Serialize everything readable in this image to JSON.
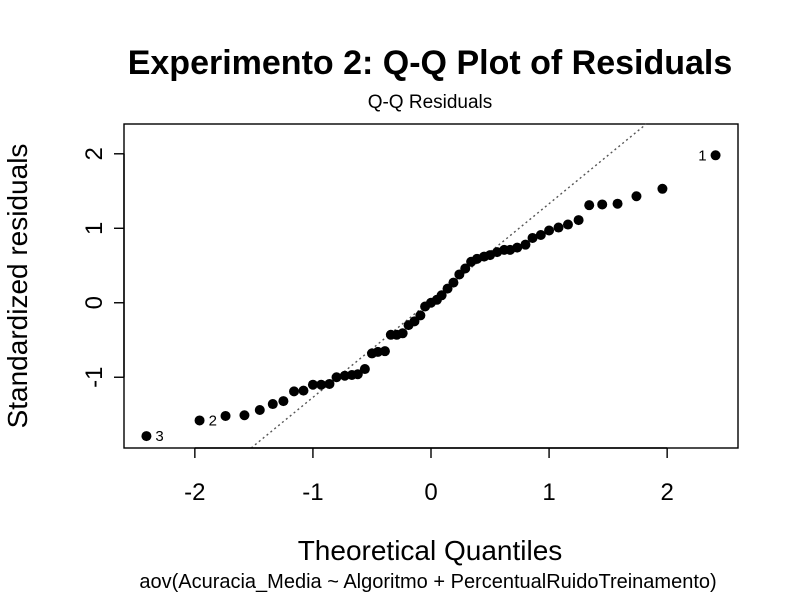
{
  "chart_data": {
    "type": "scatter",
    "title": "Experimento 2: Q-Q Plot of Residuals",
    "subtitle": "Q-Q Residuals",
    "xlabel": "Theoretical Quantiles",
    "ylabel": "Standardized residuals",
    "caption": "aov(Acuracia_Media ~ Algoritmo + PercentualRuidoTreinamento)",
    "xlim": [
      -2.6,
      2.6
    ],
    "ylim": [
      -1.95,
      2.4
    ],
    "x_ticks": [
      -2,
      -1,
      0,
      1,
      2
    ],
    "y_ticks": [
      -1,
      0,
      1,
      2
    ],
    "x_tick_labels": [
      "-2",
      "-1",
      "0",
      "1",
      "2"
    ],
    "y_tick_labels": [
      "-1",
      "0",
      "1",
      "2"
    ],
    "reference_line": {
      "style": "dotted",
      "color": "#555555",
      "intercept": 0.03,
      "slope": 1.3
    },
    "grid": false,
    "legend": "none",
    "point_color": "#000000",
    "points": [
      {
        "x": -2.41,
        "y": -1.79,
        "label": "3"
      },
      {
        "x": -1.96,
        "y": -1.58,
        "label": "2"
      },
      {
        "x": -1.74,
        "y": -1.52
      },
      {
        "x": -1.58,
        "y": -1.51
      },
      {
        "x": -1.45,
        "y": -1.44
      },
      {
        "x": -1.34,
        "y": -1.36
      },
      {
        "x": -1.25,
        "y": -1.32
      },
      {
        "x": -1.16,
        "y": -1.19
      },
      {
        "x": -1.08,
        "y": -1.18
      },
      {
        "x": -1.0,
        "y": -1.1
      },
      {
        "x": -0.93,
        "y": -1.1
      },
      {
        "x": -0.86,
        "y": -1.09
      },
      {
        "x": -0.8,
        "y": -1.0
      },
      {
        "x": -0.73,
        "y": -0.98
      },
      {
        "x": -0.67,
        "y": -0.97
      },
      {
        "x": -0.62,
        "y": -0.96
      },
      {
        "x": -0.56,
        "y": -0.89
      },
      {
        "x": -0.5,
        "y": -0.68
      },
      {
        "x": -0.45,
        "y": -0.66
      },
      {
        "x": -0.39,
        "y": -0.65
      },
      {
        "x": -0.34,
        "y": -0.43
      },
      {
        "x": -0.29,
        "y": -0.43
      },
      {
        "x": -0.24,
        "y": -0.41
      },
      {
        "x": -0.19,
        "y": -0.3
      },
      {
        "x": -0.14,
        "y": -0.25
      },
      {
        "x": -0.09,
        "y": -0.17
      },
      {
        "x": -0.05,
        "y": -0.05
      },
      {
        "x": 0.0,
        "y": 0.0
      },
      {
        "x": 0.05,
        "y": 0.04
      },
      {
        "x": 0.09,
        "y": 0.1
      },
      {
        "x": 0.14,
        "y": 0.19
      },
      {
        "x": 0.19,
        "y": 0.27
      },
      {
        "x": 0.24,
        "y": 0.38
      },
      {
        "x": 0.29,
        "y": 0.46
      },
      {
        "x": 0.34,
        "y": 0.55
      },
      {
        "x": 0.39,
        "y": 0.59
      },
      {
        "x": 0.45,
        "y": 0.62
      },
      {
        "x": 0.5,
        "y": 0.64
      },
      {
        "x": 0.56,
        "y": 0.68
      },
      {
        "x": 0.62,
        "y": 0.71
      },
      {
        "x": 0.67,
        "y": 0.71
      },
      {
        "x": 0.73,
        "y": 0.74
      },
      {
        "x": 0.8,
        "y": 0.78
      },
      {
        "x": 0.86,
        "y": 0.87
      },
      {
        "x": 0.93,
        "y": 0.91
      },
      {
        "x": 1.0,
        "y": 0.97
      },
      {
        "x": 1.08,
        "y": 1.01
      },
      {
        "x": 1.16,
        "y": 1.05
      },
      {
        "x": 1.25,
        "y": 1.11
      },
      {
        "x": 1.34,
        "y": 1.31
      },
      {
        "x": 1.45,
        "y": 1.32
      },
      {
        "x": 1.58,
        "y": 1.33
      },
      {
        "x": 1.74,
        "y": 1.43
      },
      {
        "x": 1.96,
        "y": 1.53
      },
      {
        "x": 2.41,
        "y": 1.98,
        "label": "1"
      }
    ]
  }
}
